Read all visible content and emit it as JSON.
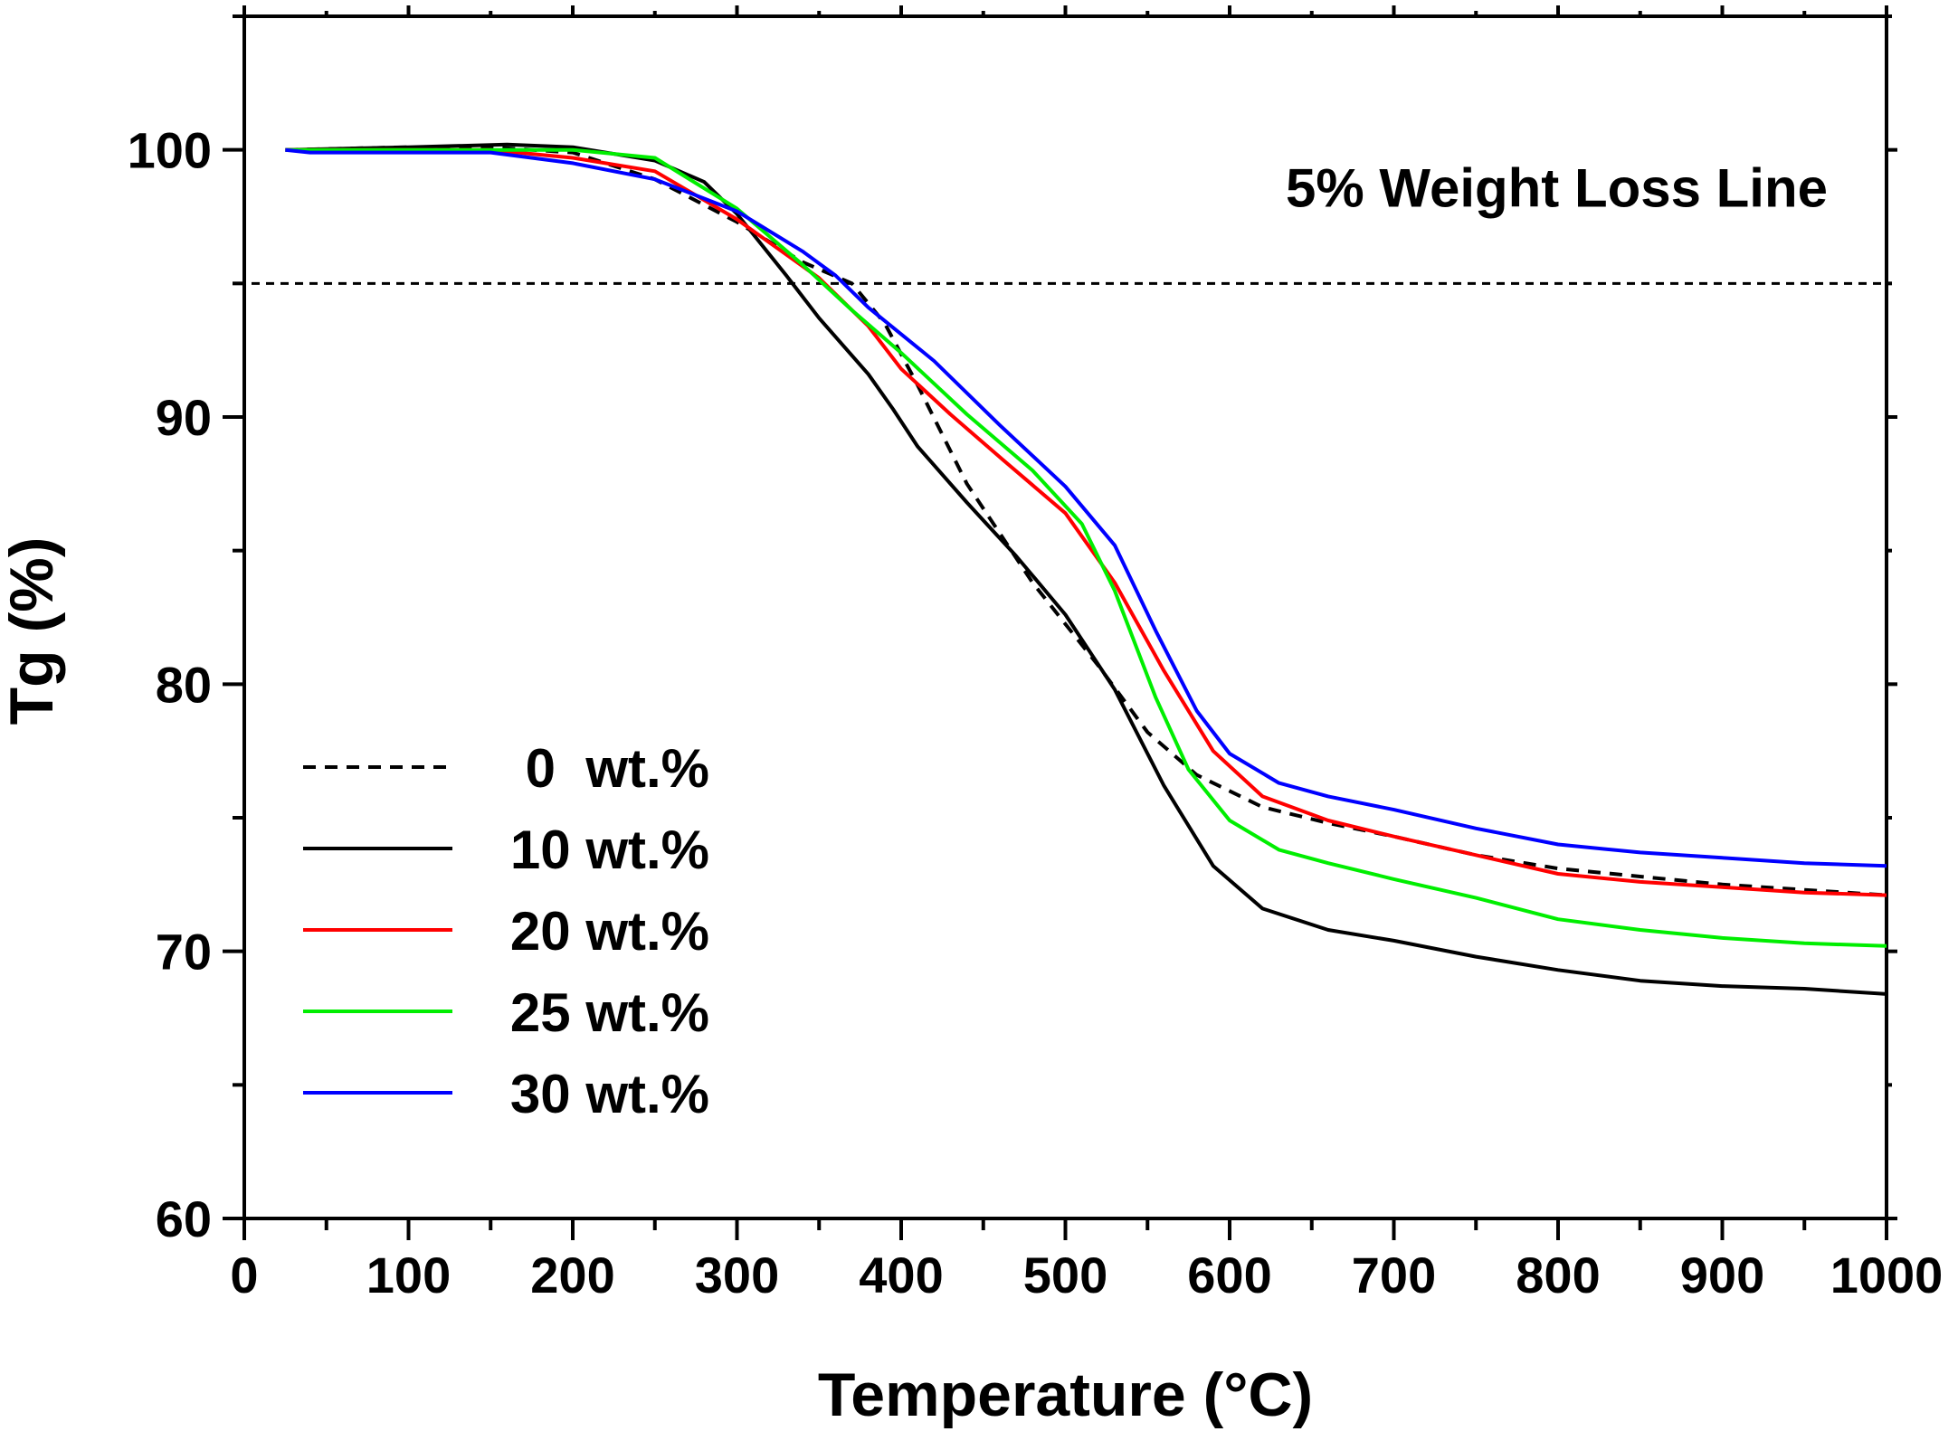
{
  "chart_data": {
    "type": "line",
    "title": "",
    "xlabel": "Temperature (°C)",
    "ylabel": "Tg (%)",
    "xlim": [
      0,
      1000
    ],
    "ylim": [
      60,
      105
    ],
    "xticks": [
      0,
      100,
      200,
      300,
      400,
      500,
      600,
      700,
      800,
      900,
      1000
    ],
    "yticks": [
      60,
      70,
      80,
      90,
      100
    ],
    "grid": false,
    "legend_position": "bottom-left",
    "annotation": {
      "text": "5% Weight Loss Line",
      "y": 95
    },
    "series": [
      {
        "name": "0  wt.%",
        "color": "#000000",
        "dash": true,
        "points": [
          [
            25,
            100
          ],
          [
            100,
            100.1
          ],
          [
            150,
            100.1
          ],
          [
            200,
            99.9
          ],
          [
            250,
            98.9
          ],
          [
            300,
            97.3
          ],
          [
            340,
            95.8
          ],
          [
            370,
            95
          ],
          [
            390,
            93.5
          ],
          [
            410,
            91.2
          ],
          [
            440,
            87.5
          ],
          [
            480,
            83.8
          ],
          [
            520,
            80.7
          ],
          [
            550,
            78.2
          ],
          [
            580,
            76.6
          ],
          [
            620,
            75.4
          ],
          [
            660,
            74.8
          ],
          [
            700,
            74.3
          ],
          [
            750,
            73.6
          ],
          [
            800,
            73.1
          ],
          [
            850,
            72.8
          ],
          [
            900,
            72.5
          ],
          [
            950,
            72.3
          ],
          [
            1000,
            72.1
          ]
        ]
      },
      {
        "name": "10 wt.%",
        "color": "#000000",
        "dash": false,
        "points": [
          [
            25,
            100
          ],
          [
            100,
            100.1
          ],
          [
            160,
            100.2
          ],
          [
            200,
            100.1
          ],
          [
            250,
            99.6
          ],
          [
            280,
            98.8
          ],
          [
            300,
            97.6
          ],
          [
            330,
            95.3
          ],
          [
            350,
            93.7
          ],
          [
            380,
            91.6
          ],
          [
            395,
            90.3
          ],
          [
            410,
            88.9
          ],
          [
            440,
            86.8
          ],
          [
            470,
            84.8
          ],
          [
            500,
            82.6
          ],
          [
            530,
            79.8
          ],
          [
            560,
            76.2
          ],
          [
            590,
            73.2
          ],
          [
            620,
            71.6
          ],
          [
            660,
            70.8
          ],
          [
            700,
            70.4
          ],
          [
            750,
            69.8
          ],
          [
            800,
            69.3
          ],
          [
            850,
            68.9
          ],
          [
            900,
            68.7
          ],
          [
            950,
            68.6
          ],
          [
            1000,
            68.4
          ]
        ]
      },
      {
        "name": "20 wt.%",
        "color": "#ff0000",
        "dash": false,
        "points": [
          [
            25,
            100
          ],
          [
            100,
            100
          ],
          [
            150,
            100
          ],
          [
            200,
            99.7
          ],
          [
            250,
            99.2
          ],
          [
            300,
            97.4
          ],
          [
            350,
            95.2
          ],
          [
            380,
            93.4
          ],
          [
            400,
            91.8
          ],
          [
            430,
            90.1
          ],
          [
            460,
            88.5
          ],
          [
            500,
            86.4
          ],
          [
            530,
            83.8
          ],
          [
            560,
            80.5
          ],
          [
            590,
            77.5
          ],
          [
            620,
            75.8
          ],
          [
            660,
            74.9
          ],
          [
            700,
            74.3
          ],
          [
            750,
            73.6
          ],
          [
            800,
            72.9
          ],
          [
            850,
            72.6
          ],
          [
            900,
            72.4
          ],
          [
            950,
            72.2
          ],
          [
            1000,
            72.1
          ]
        ]
      },
      {
        "name": "25 wt.%",
        "color": "#00ee00",
        "dash": false,
        "points": [
          [
            25,
            100
          ],
          [
            100,
            100
          ],
          [
            150,
            100
          ],
          [
            200,
            100
          ],
          [
            250,
            99.7
          ],
          [
            300,
            97.8
          ],
          [
            340,
            95.7
          ],
          [
            370,
            94
          ],
          [
            400,
            92.4
          ],
          [
            440,
            90.1
          ],
          [
            480,
            88
          ],
          [
            510,
            86
          ],
          [
            530,
            83.5
          ],
          [
            555,
            79.5
          ],
          [
            575,
            76.8
          ],
          [
            600,
            74.9
          ],
          [
            630,
            73.8
          ],
          [
            660,
            73.3
          ],
          [
            700,
            72.7
          ],
          [
            750,
            72
          ],
          [
            800,
            71.2
          ],
          [
            850,
            70.8
          ],
          [
            900,
            70.5
          ],
          [
            950,
            70.3
          ],
          [
            1000,
            70.2
          ]
        ]
      },
      {
        "name": "30 wt.%",
        "color": "#0000ff",
        "dash": false,
        "points": [
          [
            25,
            100
          ],
          [
            40,
            99.9
          ],
          [
            100,
            99.9
          ],
          [
            150,
            99.9
          ],
          [
            200,
            99.5
          ],
          [
            250,
            98.9
          ],
          [
            300,
            97.7
          ],
          [
            340,
            96.2
          ],
          [
            360,
            95.3
          ],
          [
            380,
            94.1
          ],
          [
            420,
            92.1
          ],
          [
            460,
            89.7
          ],
          [
            500,
            87.4
          ],
          [
            530,
            85.2
          ],
          [
            555,
            82
          ],
          [
            580,
            79
          ],
          [
            600,
            77.4
          ],
          [
            630,
            76.3
          ],
          [
            660,
            75.8
          ],
          [
            700,
            75.3
          ],
          [
            750,
            74.6
          ],
          [
            800,
            74
          ],
          [
            850,
            73.7
          ],
          [
            900,
            73.5
          ],
          [
            950,
            73.3
          ],
          [
            1000,
            73.2
          ]
        ]
      }
    ]
  }
}
